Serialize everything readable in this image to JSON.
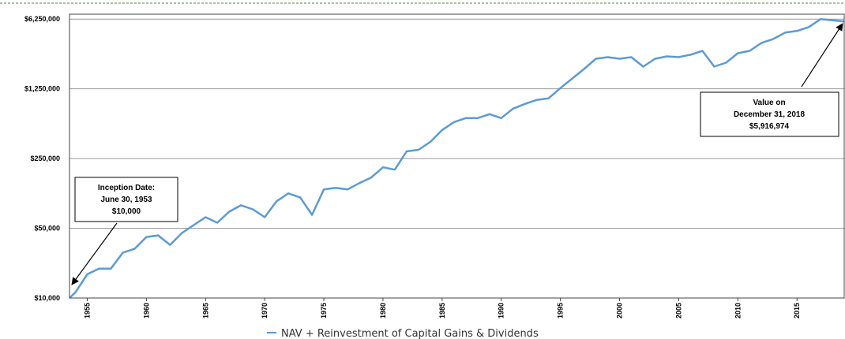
{
  "chart_data": {
    "type": "line",
    "log_y": true,
    "grid": true,
    "x": [
      1953.5,
      1954,
      1955,
      1956,
      1957,
      1958,
      1959,
      1960,
      1961,
      1962,
      1963,
      1964,
      1965,
      1966,
      1967,
      1968,
      1969,
      1970,
      1971,
      1972,
      1973,
      1974,
      1975,
      1976,
      1977,
      1978,
      1979,
      1980,
      1981,
      1982,
      1983,
      1984,
      1985,
      1986,
      1987,
      1988,
      1989,
      1990,
      1991,
      1992,
      1993,
      1994,
      1995,
      1996,
      1997,
      1998,
      1999,
      2000,
      2001,
      2002,
      2003,
      2004,
      2005,
      2006,
      2007,
      2008,
      2009,
      2010,
      2011,
      2012,
      2013,
      2014,
      2015,
      2016,
      2017,
      2018.99
    ],
    "series": [
      {
        "name": "NAV + Reinvestment of Capital Gains & Dividends",
        "color": "#5b9bd5",
        "values": [
          10000,
          11400,
          17300,
          19700,
          19700,
          28400,
          31100,
          40900,
          42400,
          34100,
          44800,
          53800,
          64600,
          56800,
          73400,
          85000,
          77500,
          64600,
          93100,
          111800,
          102000,
          68200,
          122500,
          127000,
          122500,
          141800,
          161200,
          204500,
          193600,
          295000,
          306000,
          367000,
          483000,
          580000,
          636000,
          636000,
          696000,
          636000,
          791000,
          883000,
          968000,
          1004000,
          1273000,
          1586000,
          1975000,
          2505000,
          2598000,
          2505000,
          2598000,
          2086000,
          2505000,
          2646000,
          2598000,
          2745000,
          3006000,
          2086000,
          2286000,
          2846000,
          3006000,
          3610000,
          3956000,
          4580000,
          4750000,
          5200000,
          6250000,
          5916974
        ]
      }
    ],
    "xlim": [
      1953.5,
      2018.99
    ],
    "xticks": [
      1955,
      1960,
      1965,
      1970,
      1975,
      1980,
      1985,
      1990,
      1995,
      2000,
      2005,
      2010,
      2015
    ],
    "ylim": [
      10000,
      7000000
    ],
    "yticks": [
      {
        "value": 10000,
        "label": "$10,000"
      },
      {
        "value": 50000,
        "label": "$50,000"
      },
      {
        "value": 250000,
        "label": "$250,000"
      },
      {
        "value": 1250000,
        "label": "$1,250,000"
      },
      {
        "value": 6250000,
        "label": "$6,250,000"
      }
    ],
    "annotations": [
      {
        "lines": [
          "Inception Date:",
          "June 30, 1953",
          "$10,000"
        ]
      },
      {
        "lines": [
          "Value on",
          "December 31, 2018",
          "$5,916,974"
        ]
      }
    ]
  }
}
